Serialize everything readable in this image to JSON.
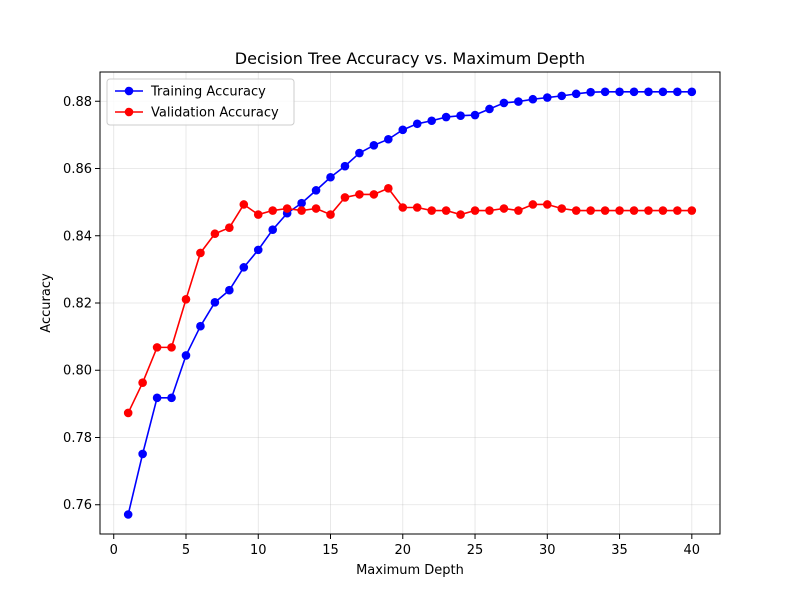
{
  "chart_data": {
    "type": "line",
    "title": "Decision Tree Accuracy vs. Maximum Depth",
    "xlabel": "Maximum Depth",
    "ylabel": "Accuracy",
    "xlim": [
      -0.95,
      41.95
    ],
    "ylim": [
      0.7513,
      0.8887
    ],
    "xticks": [
      0,
      5,
      10,
      15,
      20,
      25,
      30,
      35,
      40
    ],
    "yticks": [
      0.76,
      0.78,
      0.8,
      0.82,
      0.84,
      0.86,
      0.88
    ],
    "ytick_decimals": 2,
    "grid": true,
    "legend_position": "top-left",
    "x": [
      1,
      2,
      3,
      4,
      5,
      6,
      7,
      8,
      9,
      10,
      11,
      12,
      13,
      14,
      15,
      16,
      17,
      18,
      19,
      20,
      21,
      22,
      23,
      24,
      25,
      26,
      27,
      28,
      29,
      30,
      31,
      32,
      33,
      34,
      35,
      36,
      37,
      38,
      39,
      40
    ],
    "series": [
      {
        "name": "Training Accuracy",
        "color": "#0000ff",
        "marker": "circle",
        "values": [
          0.7571,
          0.7751,
          0.7918,
          0.7918,
          0.8044,
          0.8131,
          0.8202,
          0.8238,
          0.8306,
          0.8358,
          0.8418,
          0.8467,
          0.8497,
          0.8535,
          0.8574,
          0.8607,
          0.8646,
          0.8669,
          0.8687,
          0.8715,
          0.8733,
          0.8742,
          0.8753,
          0.8757,
          0.8759,
          0.8777,
          0.8795,
          0.8799,
          0.8806,
          0.8811,
          0.8816,
          0.8822,
          0.8827,
          0.8828,
          0.8828,
          0.8828,
          0.8828,
          0.8828,
          0.8828,
          0.8828
        ]
      },
      {
        "name": "Validation Accuracy",
        "color": "#ff0000",
        "marker": "circle",
        "values": [
          0.7873,
          0.7963,
          0.8068,
          0.8068,
          0.8211,
          0.8349,
          0.8406,
          0.8424,
          0.8493,
          0.8463,
          0.8475,
          0.8481,
          0.8475,
          0.8481,
          0.8463,
          0.8514,
          0.8523,
          0.8523,
          0.8541,
          0.8484,
          0.8484,
          0.8475,
          0.8475,
          0.8463,
          0.8475,
          0.8475,
          0.8481,
          0.8475,
          0.8493,
          0.8493,
          0.8481,
          0.8475,
          0.8475,
          0.8475,
          0.8475,
          0.8475,
          0.8475,
          0.8475,
          0.8475,
          0.8475
        ]
      }
    ]
  }
}
